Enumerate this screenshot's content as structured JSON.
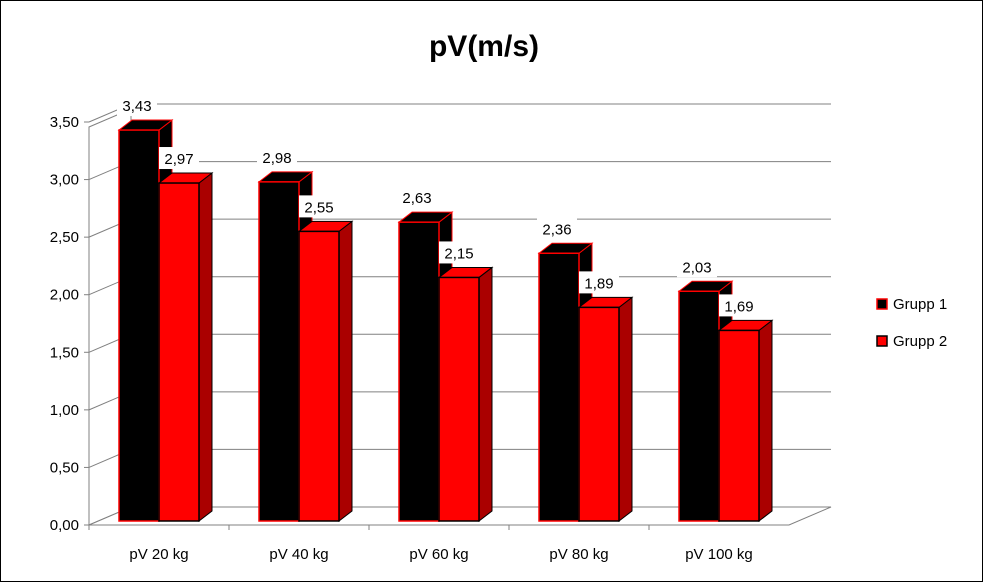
{
  "chart_data": {
    "type": "bar",
    "title": "pV(m/s)",
    "categories": [
      "pV 20 kg",
      "pV 40 kg",
      "pV 60 kg",
      "pV 80 kg",
      "pV 100 kg"
    ],
    "series": [
      {
        "name": "Grupp 1",
        "values": [
          3.43,
          2.98,
          2.63,
          2.36,
          2.03
        ],
        "labels": [
          "3,43",
          "2,98",
          "2,63",
          "2,36",
          "2,03"
        ],
        "color": "#000000",
        "edge_color": "#ff0000"
      },
      {
        "name": "Grupp 2",
        "values": [
          2.97,
          2.55,
          2.15,
          1.89,
          1.69
        ],
        "labels": [
          "2,97",
          "2,55",
          "2,15",
          "1,89",
          "1,69"
        ],
        "color": "#ff0000",
        "edge_color": "#000000"
      }
    ],
    "yticks": [
      "0,00",
      "0,50",
      "1,00",
      "1,50",
      "2,00",
      "2,50",
      "3,00",
      "3,50"
    ],
    "ylim": [
      0,
      3.5
    ],
    "grid": true,
    "legend": "right",
    "style": "3d-clustered-column"
  }
}
